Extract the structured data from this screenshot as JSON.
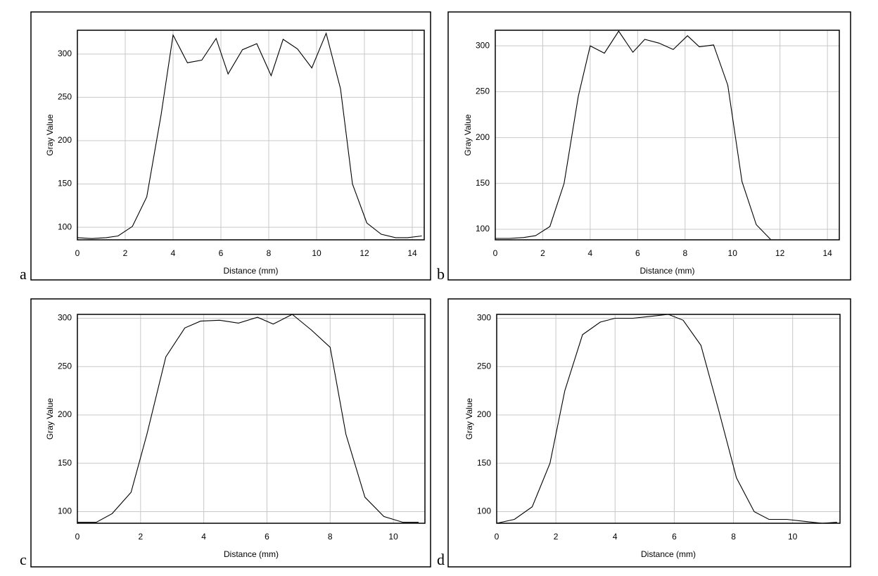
{
  "chart_data": [
    {
      "type": "line",
      "panel_label": "a",
      "xlabel": "Distance (mm)",
      "ylabel": "Gray Value",
      "color": "#000000",
      "grid": true,
      "xlim": [
        0,
        14.5
      ],
      "xticks": [
        0,
        2,
        4,
        6,
        8,
        10,
        12,
        14
      ],
      "ylim": [
        85.5,
        327.5
      ],
      "yticks": [
        100,
        150,
        200,
        250,
        300
      ],
      "x": [
        0,
        0.6,
        1.2,
        1.7,
        2.3,
        2.9,
        3.5,
        4.0,
        4.6,
        5.2,
        5.8,
        6.3,
        6.9,
        7.5,
        8.1,
        8.6,
        9.2,
        9.8,
        10.4,
        11.0,
        11.5,
        12.1,
        12.7,
        13.3,
        13.8,
        14.4
      ],
      "values": [
        88,
        87,
        88,
        90,
        101,
        135,
        230,
        322,
        290,
        293,
        318,
        277,
        305,
        312,
        275,
        317,
        306,
        284,
        324,
        260,
        150,
        105,
        92,
        88,
        88,
        90
      ]
    },
    {
      "type": "line",
      "panel_label": "b",
      "xlabel": "Distance (mm)",
      "ylabel": "Gray Value",
      "color": "#000000",
      "grid": true,
      "xlim": [
        0,
        14.5
      ],
      "xticks": [
        0,
        2,
        4,
        6,
        8,
        10,
        12,
        14
      ],
      "ylim": [
        88.5,
        317
      ],
      "yticks": [
        100,
        150,
        200,
        250,
        300
      ],
      "x": [
        0,
        0.6,
        1.2,
        1.7,
        2.3,
        2.9,
        3.5,
        4.0,
        4.6,
        5.2,
        5.8,
        6.3,
        6.9,
        7.5,
        8.1,
        8.6,
        9.2,
        9.8,
        10.4,
        11.0,
        11.6
      ],
      "values": [
        90,
        90,
        91,
        93,
        103,
        150,
        245,
        300,
        292,
        316,
        293,
        307,
        303,
        296,
        311,
        299,
        301,
        257,
        152,
        105,
        89
      ]
    },
    {
      "type": "line",
      "panel_label": "c",
      "xlabel": "Distance (mm)",
      "ylabel": "Gray Value",
      "color": "#000000",
      "grid": true,
      "xlim": [
        0,
        11
      ],
      "xticks": [
        0,
        2,
        4,
        6,
        8,
        10
      ],
      "ylim": [
        88,
        304
      ],
      "yticks": [
        100,
        150,
        200,
        250,
        300
      ],
      "x": [
        0,
        0.6,
        1.1,
        1.7,
        2.2,
        2.8,
        3.4,
        3.9,
        4.5,
        5.1,
        5.7,
        6.2,
        6.8,
        7.4,
        8.0,
        8.5,
        9.1,
        9.7,
        10.3,
        10.8
      ],
      "values": [
        89,
        89,
        98,
        120,
        180,
        260,
        290,
        297,
        298,
        295,
        301,
        294,
        304,
        288,
        270,
        180,
        115,
        95,
        89,
        89
      ]
    },
    {
      "type": "line",
      "panel_label": "d",
      "xlabel": "Distance (mm)",
      "ylabel": "Gray Value",
      "color": "#000000",
      "grid": true,
      "xlim": [
        0,
        11.6
      ],
      "xticks": [
        0,
        2,
        4,
        6,
        8,
        10
      ],
      "ylim": [
        88,
        304
      ],
      "yticks": [
        100,
        150,
        200,
        250,
        300
      ],
      "x": [
        0,
        0.6,
        1.2,
        1.8,
        2.3,
        2.9,
        3.5,
        4.0,
        4.6,
        5.2,
        5.8,
        6.3,
        6.9,
        7.5,
        8.1,
        8.7,
        9.2,
        9.8,
        10.4,
        11.0,
        11.5
      ],
      "values": [
        88,
        92,
        105,
        150,
        225,
        283,
        296,
        300,
        300,
        302,
        304,
        298,
        272,
        205,
        135,
        100,
        92,
        92,
        90,
        88,
        89
      ]
    }
  ]
}
